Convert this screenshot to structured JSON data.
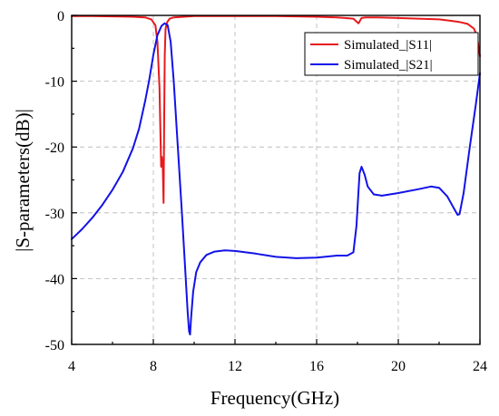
{
  "chart_data": {
    "type": "line",
    "title": "",
    "xlabel": "Frequency(GHz)",
    "ylabel": "|S-parameters(dB)|",
    "xlim": [
      4,
      24
    ],
    "ylim": [
      -50,
      0
    ],
    "xticks": [
      4,
      8,
      12,
      16,
      20,
      24
    ],
    "yticks": [
      0,
      -10,
      -20,
      -30,
      -40,
      -50
    ],
    "grid": true,
    "legend_position": "top-right",
    "series": [
      {
        "name": "Simulated_|S11|",
        "color": "#e8191c",
        "x": [
          4,
          5,
          6,
          7,
          7.6,
          7.9,
          8.1,
          8.2,
          8.3,
          8.38,
          8.42,
          8.46,
          8.5,
          8.53,
          8.56,
          8.6,
          8.68,
          8.8,
          9,
          9.5,
          10,
          12,
          14,
          16,
          17,
          17.8,
          18.05,
          18.2,
          18.4,
          19,
          20,
          21,
          22,
          22.5,
          23,
          23.4,
          23.7,
          23.85,
          24
        ],
        "y": [
          -0.1,
          -0.1,
          -0.15,
          -0.2,
          -0.3,
          -0.6,
          -1.5,
          -4,
          -11,
          -23,
          -21.5,
          -23,
          -28.5,
          -17,
          -6,
          -2,
          -1,
          -0.5,
          -0.3,
          -0.2,
          -0.1,
          -0.1,
          -0.1,
          -0.2,
          -0.3,
          -0.5,
          -1.2,
          -0.4,
          -0.3,
          -0.3,
          -0.4,
          -0.5,
          -0.6,
          -0.8,
          -1,
          -1.3,
          -2,
          -3,
          -6.2
        ]
      },
      {
        "name": "Simulated_|S21|",
        "color": "#1212e8",
        "x": [
          4,
          4.5,
          5,
          5.5,
          6,
          6.5,
          7,
          7.3,
          7.6,
          7.8,
          8,
          8.2,
          8.4,
          8.55,
          8.7,
          8.85,
          9,
          9.2,
          9.4,
          9.55,
          9.68,
          9.75,
          9.8,
          9.85,
          9.95,
          10.1,
          10.3,
          10.6,
          11,
          11.5,
          12,
          13,
          14,
          15,
          16,
          17,
          17.5,
          17.8,
          17.95,
          18.1,
          18.2,
          18.35,
          18.5,
          18.8,
          19.2,
          20,
          21,
          21.6,
          22,
          22.4,
          22.7,
          22.9,
          23,
          23.2,
          23.5,
          23.8,
          24
        ],
        "y": [
          -34,
          -32.5,
          -30.8,
          -28.8,
          -26.5,
          -23.8,
          -20.2,
          -17.2,
          -13,
          -9.8,
          -6,
          -3,
          -1.6,
          -1.2,
          -1.5,
          -4,
          -10,
          -20,
          -30,
          -38,
          -45,
          -48,
          -48.5,
          -46,
          -42,
          -39,
          -37.5,
          -36.4,
          -35.9,
          -35.7,
          -35.8,
          -36.2,
          -36.7,
          -36.9,
          -36.8,
          -36.5,
          -36.5,
          -36,
          -32,
          -24,
          -23,
          -24.2,
          -26,
          -27.2,
          -27.4,
          -27,
          -26.4,
          -26,
          -26.2,
          -27.5,
          -29.2,
          -30.3,
          -30.2,
          -27,
          -20,
          -13.5,
          -8.8
        ]
      }
    ]
  }
}
